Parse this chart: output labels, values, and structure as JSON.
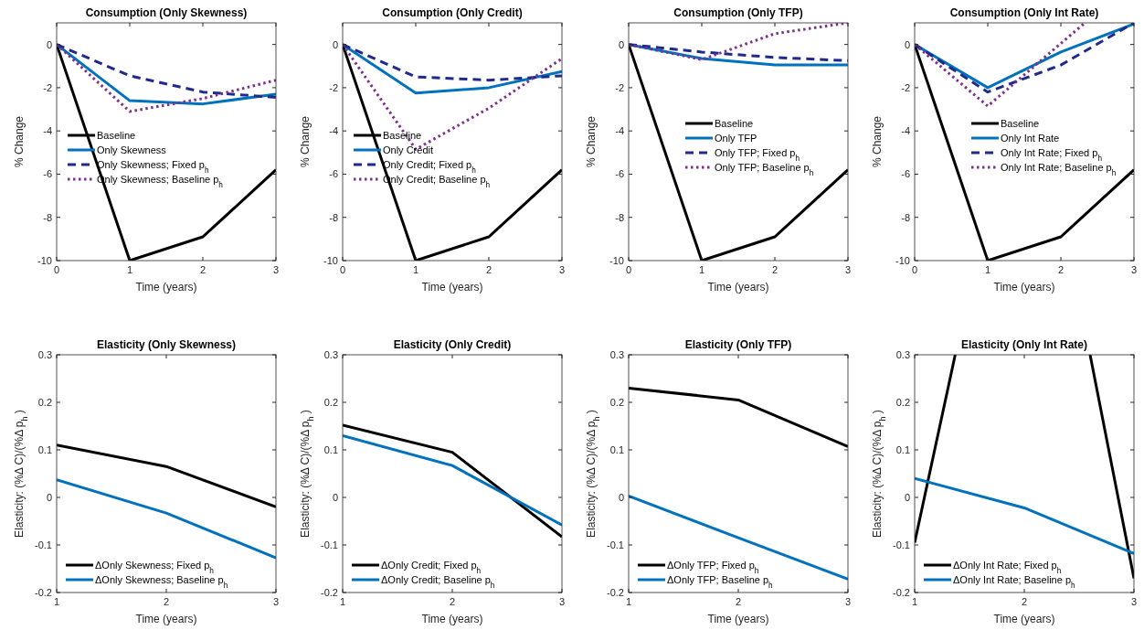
{
  "chart_data": [
    {
      "type": "line",
      "title": "Consumption (Only Skewness)",
      "xlabel": "Time (years)",
      "ylabel": "% Change",
      "x": [
        0,
        1,
        2,
        3
      ],
      "xlim": [
        0,
        3
      ],
      "xticks": [
        0,
        1,
        2,
        3
      ],
      "ylim": [
        -10,
        1
      ],
      "yticks": [
        -10,
        -8,
        -6,
        -4,
        -2,
        0
      ],
      "legend": "left",
      "series": [
        {
          "name": "Baseline",
          "color": "#000000",
          "line_style": "solid",
          "values": [
            0,
            -10,
            -8.9,
            -5.8
          ]
        },
        {
          "name": "Only Skewness",
          "color": "#0072bd",
          "line_style": "solid",
          "values": [
            0,
            -2.6,
            -2.75,
            -2.3
          ]
        },
        {
          "name": "Only Skewness; Fixed p$_{h}$",
          "color": "#1f2a8a",
          "line_style": "dashed",
          "values": [
            0,
            -1.45,
            -2.2,
            -2.45
          ]
        },
        {
          "name": "Only Skewness; Baseline p$_{h}$",
          "color": "#7e2f8e",
          "line_style": "dotted",
          "values": [
            0,
            -3.1,
            -2.5,
            -1.65
          ]
        }
      ]
    },
    {
      "type": "line",
      "title": "Consumption (Only Credit)",
      "xlabel": "Time (years)",
      "ylabel": "% Change",
      "x": [
        0,
        1,
        2,
        3
      ],
      "xlim": [
        0,
        3
      ],
      "xticks": [
        0,
        1,
        2,
        3
      ],
      "ylim": [
        -10,
        1
      ],
      "yticks": [
        -10,
        -8,
        -6,
        -4,
        -2,
        0
      ],
      "legend": "left",
      "series": [
        {
          "name": "Baseline",
          "color": "#000000",
          "line_style": "solid",
          "values": [
            0,
            -10,
            -8.9,
            -5.8
          ]
        },
        {
          "name": "Only Credit",
          "color": "#0072bd",
          "line_style": "solid",
          "values": [
            0,
            -2.25,
            -2.0,
            -1.25
          ]
        },
        {
          "name": "Only Credit; Fixed p$_{h}$",
          "color": "#1f2a8a",
          "line_style": "dashed",
          "values": [
            0,
            -1.5,
            -1.65,
            -1.45
          ]
        },
        {
          "name": "Only Credit; Baseline p$_{h}$",
          "color": "#7e2f8e",
          "line_style": "dotted",
          "values": [
            0,
            -4.85,
            -2.95,
            -0.65
          ]
        }
      ]
    },
    {
      "type": "line",
      "title": "Consumption (Only TFP)",
      "xlabel": "Time (years)",
      "ylabel": "% Change",
      "x": [
        0,
        1,
        2,
        3
      ],
      "xlim": [
        0,
        3
      ],
      "xticks": [
        0,
        1,
        2,
        3
      ],
      "ylim": [
        -10,
        1
      ],
      "yticks": [
        -10,
        -8,
        -6,
        -4,
        -2,
        0
      ],
      "legend": "center",
      "series": [
        {
          "name": "Baseline",
          "color": "#000000",
          "line_style": "solid",
          "values": [
            0,
            -10,
            -8.9,
            -5.8
          ]
        },
        {
          "name": "Only TFP",
          "color": "#0072bd",
          "line_style": "solid",
          "values": [
            0,
            -0.65,
            -0.95,
            -0.95
          ]
        },
        {
          "name": "Only TFP; Fixed p$_{h}$",
          "color": "#1f2a8a",
          "line_style": "dashed",
          "values": [
            0,
            -0.35,
            -0.6,
            -0.75
          ]
        },
        {
          "name": "Only TFP; Baseline p$_{h}$",
          "color": "#7e2f8e",
          "line_style": "dotted",
          "values": [
            0,
            -0.7,
            0.5,
            1.0
          ]
        }
      ]
    },
    {
      "type": "line",
      "title": "Consumption (Only Int Rate)",
      "xlabel": "Time (years)",
      "ylabel": "% Change",
      "x": [
        0,
        1,
        2,
        3
      ],
      "xlim": [
        0,
        3
      ],
      "xticks": [
        0,
        1,
        2,
        3
      ],
      "ylim": [
        -10,
        1
      ],
      "yticks": [
        -10,
        -8,
        -6,
        -4,
        -2,
        0
      ],
      "legend": "center",
      "series": [
        {
          "name": "Baseline",
          "color": "#000000",
          "line_style": "solid",
          "values": [
            0,
            -10,
            -8.9,
            -5.8
          ]
        },
        {
          "name": "Only Int Rate",
          "color": "#0072bd",
          "line_style": "solid",
          "values": [
            0,
            -2.0,
            -0.35,
            0.95
          ]
        },
        {
          "name": "Only Int Rate; Fixed p$_{h}$",
          "color": "#1f2a8a",
          "line_style": "dashed",
          "values": [
            0,
            -2.2,
            -0.95,
            1.0
          ]
        },
        {
          "name": "Only Int Rate; Baseline p$_{h}$",
          "color": "#7e2f8e",
          "line_style": "dotted",
          "x": [
            0,
            1,
            2,
            2.33
          ],
          "values": [
            0,
            -2.85,
            0.05,
            1.0
          ]
        }
      ]
    },
    {
      "type": "line",
      "title": "Elasticity (Only Skewness)",
      "xlabel": "Time (years)",
      "ylabel": "Elasticity: (%Δ C)/(%Δ p$_{h}$)",
      "x": [
        1,
        2,
        3
      ],
      "xlim": [
        1,
        3
      ],
      "xticks": [
        1,
        2,
        3
      ],
      "ylim": [
        -0.2,
        0.3
      ],
      "yticks": [
        -0.2,
        -0.1,
        0,
        0.1,
        0.2,
        0.3
      ],
      "legend": "bottom left",
      "series": [
        {
          "name": "ΔOnly Skewness; Fixed p$_{h}$",
          "color": "#000000",
          "line_style": "solid",
          "values": [
            0.11,
            0.065,
            -0.02
          ]
        },
        {
          "name": "ΔOnly Skewness; Baseline p$_{h}$",
          "color": "#0072bd",
          "line_style": "solid",
          "values": [
            0.037,
            -0.033,
            -0.127
          ]
        }
      ]
    },
    {
      "type": "line",
      "title": "Elasticity (Only Credit)",
      "xlabel": "Time (years)",
      "ylabel": "Elasticity: (%Δ C)/(%Δ p$_{h}$)",
      "x": [
        1,
        2,
        3
      ],
      "xlim": [
        1,
        3
      ],
      "xticks": [
        1,
        2,
        3
      ],
      "ylim": [
        -0.2,
        0.3
      ],
      "yticks": [
        -0.2,
        -0.1,
        0,
        0.1,
        0.2,
        0.3
      ],
      "legend": "bottom left",
      "series": [
        {
          "name": "ΔOnly Credit; Fixed p$_{h}$",
          "color": "#000000",
          "line_style": "solid",
          "values": [
            0.152,
            0.095,
            -0.083
          ]
        },
        {
          "name": "ΔOnly Credit; Baseline p$_{h}$",
          "color": "#0072bd",
          "line_style": "solid",
          "values": [
            0.13,
            0.067,
            -0.058
          ]
        }
      ]
    },
    {
      "type": "line",
      "title": "Elasticity (Only TFP)",
      "xlabel": "Time (years)",
      "ylabel": "Elasticity: (%Δ C)/(%Δ p$_{h}$)",
      "x": [
        1,
        2,
        3
      ],
      "xlim": [
        1,
        3
      ],
      "xticks": [
        1,
        2,
        3
      ],
      "ylim": [
        -0.2,
        0.3
      ],
      "yticks": [
        -0.2,
        -0.1,
        0,
        0.1,
        0.2,
        0.3
      ],
      "legend": "bottom left",
      "series": [
        {
          "name": "ΔOnly TFP; Fixed p$_{h}$",
          "color": "#000000",
          "line_style": "solid",
          "values": [
            0.23,
            0.205,
            0.107
          ]
        },
        {
          "name": "ΔOnly TFP; Baseline p$_{h}$",
          "color": "#0072bd",
          "line_style": "solid",
          "values": [
            0.003,
            -0.085,
            -0.172
          ]
        }
      ]
    },
    {
      "type": "line",
      "title": "Elasticity (Only Int Rate)",
      "xlabel": "Time (years)",
      "ylabel": "Elasticity: (%Δ C)/(%Δ p$_{h}$)",
      "x": [
        1,
        2,
        3
      ],
      "xlim": [
        1,
        3
      ],
      "xticks": [
        1,
        2,
        3
      ],
      "ylim": [
        -0.2,
        0.3
      ],
      "yticks": [
        -0.2,
        -0.1,
        0,
        0.1,
        0.2,
        0.3
      ],
      "legend": "bottom left",
      "series": [
        {
          "name": "ΔOnly Int Rate; Fixed p$_{h}$",
          "color": "#000000",
          "line_style": "solid",
          "x": [
            1,
            1.37,
            2,
            2.6,
            3
          ],
          "values": [
            -0.095,
            0.3,
            null,
            0.3,
            -0.17
          ]
        },
        {
          "name": "ΔOnly Int Rate; Baseline p$_{h}$",
          "color": "#0072bd",
          "line_style": "solid",
          "values": [
            0.04,
            -0.022,
            -0.118
          ]
        }
      ]
    }
  ]
}
